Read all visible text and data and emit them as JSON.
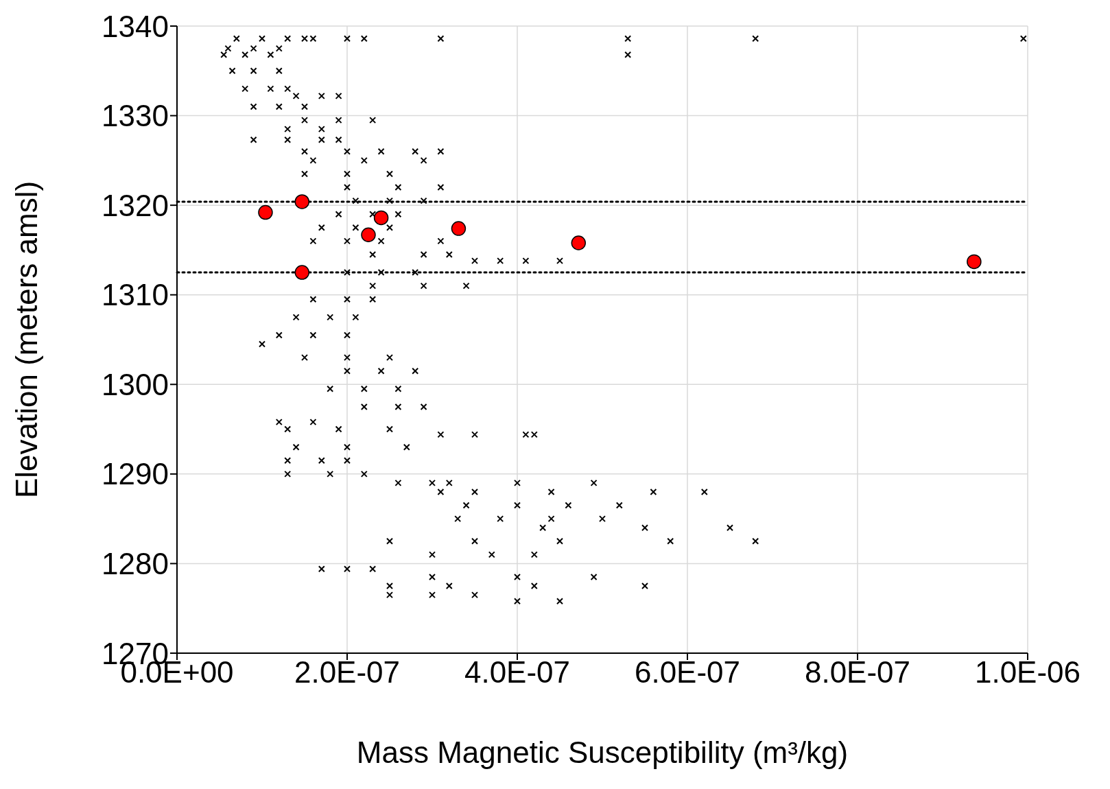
{
  "chart_data": {
    "type": "scatter",
    "xlabel": "Mass Magnetic Susceptibility (m³/kg)",
    "ylabel": "Elevation (meters amsl)",
    "xlim": [
      0,
      1e-06
    ],
    "xticks": [
      {
        "value": 0,
        "label": "0.0E+00"
      },
      {
        "value": 2e-07,
        "label": "2.0E-07"
      },
      {
        "value": 4e-07,
        "label": "4.0E-07"
      },
      {
        "value": 6e-07,
        "label": "6.0E-07"
      },
      {
        "value": 8e-07,
        "label": "8.0E-07"
      },
      {
        "value": 1e-06,
        "label": "1.0E-06"
      }
    ],
    "ylim": [
      1270,
      1340
    ],
    "yticks": [
      1270,
      1280,
      1290,
      1300,
      1310,
      1320,
      1330,
      1340
    ],
    "grid": true,
    "legend": false,
    "ref_lines": [
      {
        "axis": "y",
        "value": 1320.4,
        "line_style": "dotted",
        "color": "#000000"
      },
      {
        "axis": "y",
        "value": 1312.5,
        "line_style": "dotted",
        "color": "#000000"
      }
    ],
    "series": [
      {
        "color": "#000000",
        "marker": "cross",
        "x": [
          7e-08,
          1e-07,
          1.3e-07,
          1.5e-07,
          1.6e-07,
          2e-07,
          2.2e-07,
          3.1e-07,
          5.3e-07,
          6.8e-07,
          9.95e-07,
          6e-08,
          9e-08,
          1.2e-07,
          5.5e-08,
          8e-08,
          1.1e-07,
          5.3e-07,
          6.5e-08,
          9e-08,
          1.2e-07,
          8e-08,
          1.1e-07,
          1.3e-07,
          1.4e-07,
          1.7e-07,
          1.9e-07,
          9e-08,
          1.2e-07,
          1.5e-07,
          1.5e-07,
          1.9e-07,
          2.3e-07,
          1.3e-07,
          1.7e-07,
          9e-08,
          1.3e-07,
          1.7e-07,
          1.9e-07,
          1.5e-07,
          2e-07,
          2.4e-07,
          2.8e-07,
          3.1e-07,
          1.6e-07,
          2.2e-07,
          2.9e-07,
          1.5e-07,
          2e-07,
          2.5e-07,
          2e-07,
          2.6e-07,
          3.1e-07,
          2.1e-07,
          2.5e-07,
          2.9e-07,
          1.9e-07,
          2.3e-07,
          2.6e-07,
          1.7e-07,
          2.1e-07,
          2.5e-07,
          1.6e-07,
          2e-07,
          2.4e-07,
          3.1e-07,
          2.3e-07,
          2.9e-07,
          3.2e-07,
          3.5e-07,
          3.8e-07,
          4.1e-07,
          4.5e-07,
          2e-07,
          2.4e-07,
          2.8e-07,
          2.3e-07,
          2.9e-07,
          3.4e-07,
          1.6e-07,
          2e-07,
          2.3e-07,
          1.4e-07,
          1.8e-07,
          2.1e-07,
          1.2e-07,
          1.6e-07,
          2e-07,
          1e-07,
          1.5e-07,
          2e-07,
          2.5e-07,
          2e-07,
          2.4e-07,
          2.8e-07,
          1.8e-07,
          2.2e-07,
          2.6e-07,
          2.2e-07,
          2.6e-07,
          2.9e-07,
          1.2e-07,
          1.6e-07,
          1.3e-07,
          1.9e-07,
          2.5e-07,
          3.1e-07,
          3.5e-07,
          4.1e-07,
          4.2e-07,
          1.4e-07,
          2e-07,
          2.7e-07,
          1.3e-07,
          1.7e-07,
          2e-07,
          1.3e-07,
          1.8e-07,
          2.2e-07,
          2.6e-07,
          3e-07,
          3.2e-07,
          4e-07,
          4.9e-07,
          3.1e-07,
          3.5e-07,
          4.4e-07,
          5.6e-07,
          6.2e-07,
          3.4e-07,
          4e-07,
          4.6e-07,
          5.2e-07,
          3.3e-07,
          3.8e-07,
          4.4e-07,
          5e-07,
          4.3e-07,
          5.5e-07,
          6.5e-07,
          2.5e-07,
          3.5e-07,
          4.5e-07,
          5.8e-07,
          6.8e-07,
          3e-07,
          3.7e-07,
          4.2e-07,
          1.7e-07,
          2e-07,
          2.3e-07,
          3e-07,
          4e-07,
          4.9e-07,
          2.5e-07,
          3.2e-07,
          4.2e-07,
          5.5e-07,
          2.5e-07,
          3e-07,
          3.5e-07,
          4e-07,
          4.5e-07
        ],
        "values": [
          1338.6,
          1338.6,
          1338.6,
          1338.6,
          1338.6,
          1338.6,
          1338.6,
          1338.6,
          1338.6,
          1338.6,
          1338.6,
          1337.5,
          1337.5,
          1337.5,
          1336.8,
          1336.8,
          1336.8,
          1336.8,
          1335,
          1335,
          1335,
          1333,
          1333,
          1333,
          1332.2,
          1332.2,
          1332.2,
          1331,
          1331,
          1331,
          1329.5,
          1329.5,
          1329.5,
          1328.5,
          1328.5,
          1327.3,
          1327.3,
          1327.3,
          1327.3,
          1326,
          1326,
          1326,
          1326,
          1326,
          1325,
          1325,
          1325,
          1323.5,
          1323.5,
          1323.5,
          1322,
          1322,
          1322,
          1320.5,
          1320.5,
          1320.5,
          1319,
          1319,
          1319,
          1317.5,
          1317.5,
          1317.5,
          1316,
          1316,
          1316,
          1316,
          1314.5,
          1314.5,
          1314.5,
          1313.8,
          1313.8,
          1313.8,
          1313.8,
          1312.5,
          1312.5,
          1312.5,
          1311,
          1311,
          1311,
          1309.5,
          1309.5,
          1309.5,
          1307.5,
          1307.5,
          1307.5,
          1305.5,
          1305.5,
          1305.5,
          1304.5,
          1303,
          1303,
          1303,
          1301.5,
          1301.5,
          1301.5,
          1299.5,
          1299.5,
          1299.5,
          1297.5,
          1297.5,
          1297.5,
          1295.8,
          1295.8,
          1295,
          1295,
          1295,
          1294.4,
          1294.4,
          1294.4,
          1294.4,
          1293,
          1293,
          1293,
          1291.5,
          1291.5,
          1291.5,
          1290,
          1290,
          1290,
          1289,
          1289,
          1289,
          1289,
          1289,
          1288,
          1288,
          1288,
          1288,
          1288,
          1286.5,
          1286.5,
          1286.5,
          1286.5,
          1285,
          1285,
          1285,
          1285,
          1284,
          1284,
          1284,
          1282.5,
          1282.5,
          1282.5,
          1282.5,
          1282.5,
          1281,
          1281,
          1281,
          1279.4,
          1279.4,
          1279.4,
          1278.5,
          1278.5,
          1278.5,
          1277.5,
          1277.5,
          1277.5,
          1277.5,
          1276.5,
          1276.5,
          1276.5,
          1275.8,
          1275.8
        ]
      },
      {
        "color": "#ff0000",
        "marker": "circle",
        "x": [
          1.04e-07,
          1.47e-07,
          1.47e-07,
          2.25e-07,
          2.4e-07,
          3.31e-07,
          4.72e-07,
          9.37e-07
        ],
        "values": [
          1319.2,
          1320.4,
          1312.5,
          1316.7,
          1318.6,
          1317.4,
          1315.8,
          1313.7
        ]
      }
    ]
  }
}
